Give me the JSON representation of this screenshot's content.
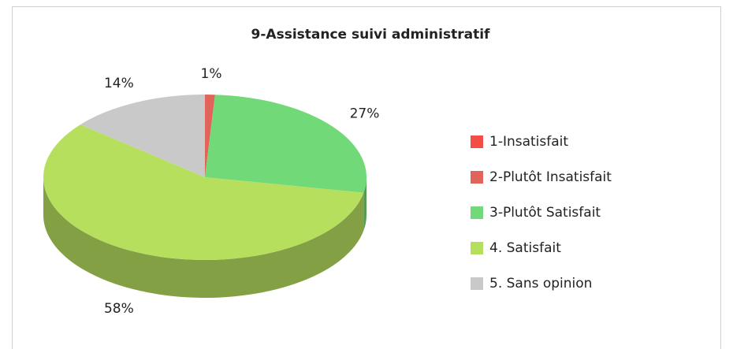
{
  "chart_data": {
    "type": "pie3d",
    "title": "9-Assistance suivi administratif",
    "categories": [
      "1-Insatisfait",
      "2-Plutôt Insatisfait",
      "3-Plutôt Satisfait",
      "4. Satisfait",
      "5. Sans opinion"
    ],
    "values": [
      0,
      1,
      27,
      58,
      14
    ],
    "value_labels": [
      null,
      "1%",
      "27%",
      "58%",
      "14%"
    ],
    "colors": [
      "#f24d46",
      "#e0645a",
      "#72d978",
      "#b6df5e",
      "#c9c9c9"
    ],
    "legend": "right"
  }
}
